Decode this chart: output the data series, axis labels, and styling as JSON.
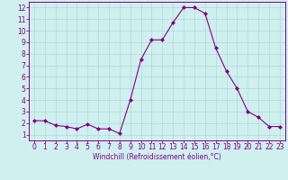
{
  "x": [
    0,
    1,
    2,
    3,
    4,
    5,
    6,
    7,
    8,
    9,
    10,
    11,
    12,
    13,
    14,
    15,
    16,
    17,
    18,
    19,
    20,
    21,
    22,
    23
  ],
  "y": [
    2.2,
    2.2,
    1.8,
    1.7,
    1.5,
    1.9,
    1.5,
    1.5,
    1.1,
    4.0,
    7.5,
    9.2,
    9.2,
    10.7,
    12.0,
    12.0,
    11.5,
    8.5,
    6.5,
    5.0,
    3.0,
    2.5,
    1.7,
    1.7
  ],
  "line_color": "#800080",
  "marker": "D",
  "marker_size": 2,
  "bg_color": "#d0f0f0",
  "grid_color": "#b0d8d8",
  "xlabel": "Windchill (Refroidissement éolien,°C)",
  "xlim": [
    -0.5,
    23.5
  ],
  "ylim": [
    0.5,
    12.5
  ],
  "xticks": [
    0,
    1,
    2,
    3,
    4,
    5,
    6,
    7,
    8,
    9,
    10,
    11,
    12,
    13,
    14,
    15,
    16,
    17,
    18,
    19,
    20,
    21,
    22,
    23
  ],
  "yticks": [
    1,
    2,
    3,
    4,
    5,
    6,
    7,
    8,
    9,
    10,
    11,
    12
  ],
  "tick_fontsize": 5.5,
  "xlabel_fontsize": 5.5,
  "linewidth": 0.8
}
